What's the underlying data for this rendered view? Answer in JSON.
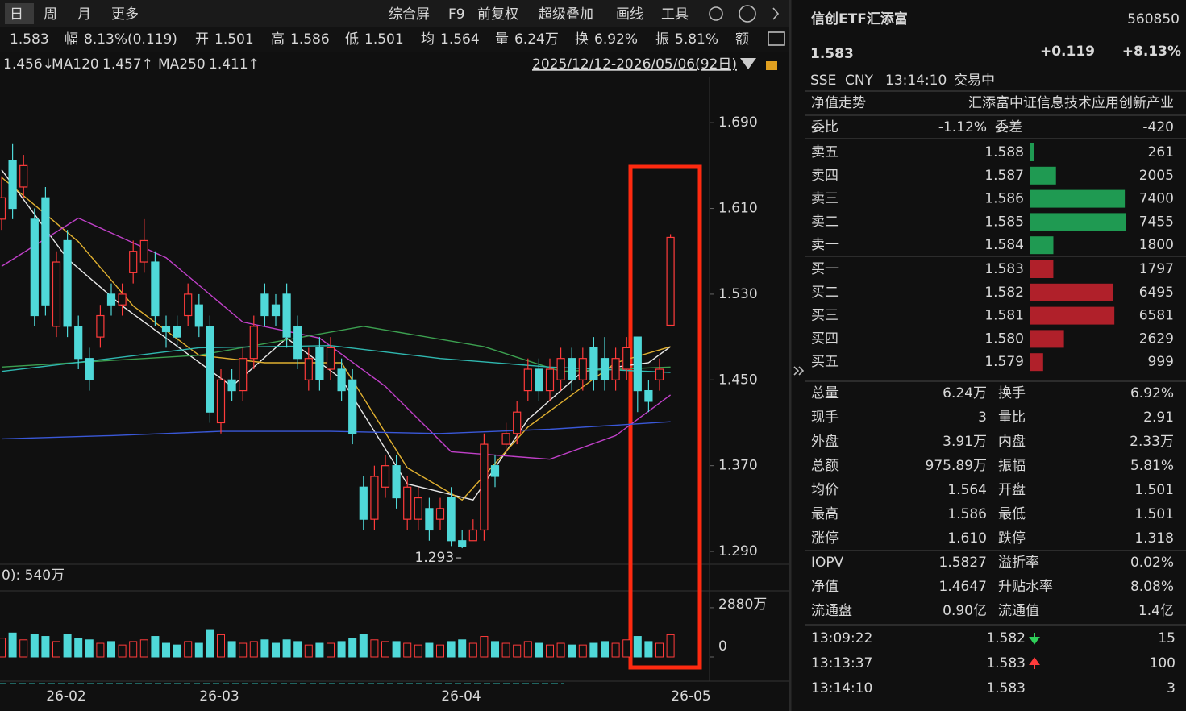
{
  "toolbar": {
    "periods": [
      "日",
      "周",
      "月",
      "更多"
    ],
    "tools": [
      "综合屏",
      "F9",
      "前复权",
      "超级叠加",
      "画线",
      "工具"
    ]
  },
  "info_bar": [
    {
      "value": "1.583"
    },
    {
      "label": "幅",
      "value": "8.13%(0.119)"
    },
    {
      "label": "开",
      "value": "1.501"
    },
    {
      "label": "高",
      "value": "1.586"
    },
    {
      "label": "低",
      "value": "1.501"
    },
    {
      "label": "均",
      "value": "1.564"
    },
    {
      "label": "量",
      "value": "6.24万"
    },
    {
      "label": "换",
      "value": "6.92%"
    },
    {
      "label": "振",
      "value": "5.81%"
    },
    {
      "label": "额"
    }
  ],
  "ma_legend": [
    {
      "value": "1.456↓",
      "color": "#3ccf6a"
    },
    {
      "label": "MA120",
      "value": "1.457↑",
      "color": "#e0e0e0"
    },
    {
      "label": "MA250",
      "value": "1.411↑",
      "color": "#4a7bff"
    }
  ],
  "date_range": "2025/12/12-2026/05/06(92日)",
  "chart": {
    "type": "candlestick",
    "ylim": [
      1.278,
      1.733
    ],
    "yticks": [
      {
        "value": 1.69,
        "label": "1.690"
      },
      {
        "value": 1.61,
        "label": "1.610"
      },
      {
        "value": 1.53,
        "label": "1.530"
      },
      {
        "value": 1.45,
        "label": "1.450"
      },
      {
        "value": 1.37,
        "label": "1.370"
      },
      {
        "value": 1.29,
        "label": "1.290"
      }
    ],
    "grid": false,
    "up_color": "#ff3b3b",
    "down_color": "#4fd8d8",
    "candles": {
      "open": [
        1.6,
        1.655,
        1.63,
        1.6,
        1.62,
        1.5,
        1.58,
        1.5,
        1.47,
        1.49,
        1.53,
        1.52,
        1.55,
        1.56,
        1.56,
        1.5,
        1.5,
        1.51,
        1.52,
        1.5,
        1.41,
        1.45,
        1.44,
        1.47,
        1.53,
        1.52,
        1.53,
        1.5,
        1.45,
        1.48,
        1.46,
        1.46,
        1.45,
        1.35,
        1.32,
        1.35,
        1.37,
        1.32,
        1.32,
        1.33,
        1.32,
        1.34,
        1.3,
        1.3,
        1.31,
        1.37,
        1.39,
        1.4,
        1.44,
        1.46,
        1.44,
        1.45,
        1.47,
        1.45,
        1.48,
        1.47,
        1.45,
        1.46,
        1.49,
        1.44,
        1.45,
        1.501
      ],
      "high": [
        1.64,
        1.67,
        1.66,
        1.61,
        1.63,
        1.57,
        1.59,
        1.51,
        1.48,
        1.52,
        1.54,
        1.54,
        1.58,
        1.6,
        1.57,
        1.51,
        1.51,
        1.54,
        1.53,
        1.51,
        1.46,
        1.46,
        1.48,
        1.51,
        1.54,
        1.53,
        1.54,
        1.51,
        1.48,
        1.49,
        1.49,
        1.47,
        1.46,
        1.36,
        1.37,
        1.38,
        1.38,
        1.36,
        1.35,
        1.34,
        1.34,
        1.35,
        1.31,
        1.32,
        1.4,
        1.38,
        1.41,
        1.43,
        1.47,
        1.47,
        1.47,
        1.48,
        1.48,
        1.48,
        1.49,
        1.49,
        1.48,
        1.49,
        1.49,
        1.45,
        1.47,
        1.586
      ],
      "low": [
        1.59,
        1.6,
        1.62,
        1.5,
        1.51,
        1.49,
        1.49,
        1.46,
        1.44,
        1.48,
        1.51,
        1.51,
        1.54,
        1.55,
        1.5,
        1.48,
        1.48,
        1.5,
        1.49,
        1.41,
        1.4,
        1.43,
        1.43,
        1.46,
        1.5,
        1.5,
        1.48,
        1.46,
        1.44,
        1.44,
        1.45,
        1.43,
        1.39,
        1.31,
        1.31,
        1.34,
        1.33,
        1.31,
        1.31,
        1.3,
        1.31,
        1.295,
        1.293,
        1.3,
        1.3,
        1.35,
        1.38,
        1.39,
        1.43,
        1.43,
        1.43,
        1.44,
        1.44,
        1.44,
        1.44,
        1.44,
        1.44,
        1.45,
        1.42,
        1.42,
        1.44,
        1.501
      ],
      "close": [
        1.62,
        1.61,
        1.65,
        1.51,
        1.52,
        1.56,
        1.5,
        1.47,
        1.45,
        1.51,
        1.52,
        1.53,
        1.57,
        1.58,
        1.51,
        1.495,
        1.49,
        1.53,
        1.5,
        1.42,
        1.45,
        1.44,
        1.47,
        1.5,
        1.51,
        1.51,
        1.49,
        1.47,
        1.47,
        1.45,
        1.48,
        1.44,
        1.4,
        1.32,
        1.36,
        1.37,
        1.34,
        1.35,
        1.34,
        1.31,
        1.33,
        1.3,
        1.295,
        1.31,
        1.39,
        1.36,
        1.4,
        1.42,
        1.46,
        1.44,
        1.46,
        1.47,
        1.45,
        1.47,
        1.45,
        1.45,
        1.47,
        1.48,
        1.44,
        1.43,
        1.46,
        1.583
      ]
    },
    "low_label": "1.293",
    "ma_lines": [
      {
        "color": "#e8e8e8",
        "x": [
          0,
          6,
          11,
          21,
          26,
          31,
          37,
          43,
          48,
          53,
          59,
          61
        ],
        "values": [
          1.646,
          1.563,
          1.519,
          1.444,
          1.489,
          1.451,
          1.353,
          1.338,
          1.413,
          1.458,
          1.466,
          1.481
        ]
      },
      {
        "color": "#e0b030",
        "x": [
          0,
          7,
          12,
          18,
          24,
          31,
          37,
          42,
          48,
          56,
          61
        ],
        "values": [
          1.639,
          1.579,
          1.519,
          1.473,
          1.466,
          1.466,
          1.368,
          1.338,
          1.406,
          1.466,
          1.481
        ]
      },
      {
        "color": "#c040c8",
        "x": [
          0,
          7,
          15,
          22,
          29,
          35,
          41,
          50,
          56,
          61
        ],
        "values": [
          1.556,
          1.601,
          1.564,
          1.504,
          1.489,
          1.444,
          1.383,
          1.376,
          1.398,
          1.436
        ]
      },
      {
        "color": "#3ca050",
        "x": [
          0,
          18,
          33,
          44,
          51,
          61
        ],
        "values": [
          1.462,
          1.473,
          1.5,
          1.481,
          1.458,
          1.462
        ]
      },
      {
        "name": "MA120",
        "color": "#2fb8b0",
        "x": [
          0,
          10,
          18,
          30,
          40,
          50,
          61
        ],
        "values": [
          1.458,
          1.47,
          1.48,
          1.482,
          1.47,
          1.462,
          1.457
        ]
      },
      {
        "name": "MA250",
        "color": "#3a58d8",
        "x": [
          0,
          10,
          20,
          30,
          40,
          50,
          61
        ],
        "values": [
          1.395,
          1.398,
          1.402,
          1.402,
          1.4,
          1.404,
          1.411
        ]
      }
    ],
    "volume": {
      "label": "0): 540万",
      "ylim": [
        0,
        3300
      ],
      "yticks": [
        0,
        {
          "value": 2880,
          "label": "2880万"
        }
      ],
      "values": [
        1100,
        1400,
        1000,
        1300,
        1200,
        900,
        1300,
        1100,
        1000,
        800,
        900,
        700,
        900,
        1000,
        1200,
        800,
        700,
        900,
        800,
        1600,
        1300,
        900,
        800,
        900,
        1000,
        800,
        1000,
        900,
        700,
        800,
        800,
        900,
        1100,
        1300,
        1000,
        900,
        900,
        800,
        700,
        800,
        700,
        900,
        1000,
        800,
        1200,
        900,
        800,
        700,
        900,
        800,
        700,
        800,
        700,
        700,
        800,
        900,
        800,
        1000,
        1200,
        900,
        800,
        1300
      ]
    },
    "x_labels": [
      "26-02",
      "26-03",
      "26-04",
      "26-05"
    ]
  },
  "quote": {
    "name": "信创ETF汇添富",
    "code": "560850",
    "price": "1.583",
    "change": "+0.119",
    "change_pct": "+8.13%",
    "meta": [
      "SSE",
      "CNY",
      "13:14:10",
      "交易中"
    ]
  },
  "nav_row": [
    "净值走势",
    "汇添富中证信息技术应用创新产业"
  ],
  "ratio_row": [
    "委比",
    "-1.12%",
    "委差",
    "-420"
  ],
  "asks": [
    {
      "label": "卖五",
      "price": "1.588",
      "volume": 261
    },
    {
      "label": "卖四",
      "price": "1.587",
      "volume": 2005
    },
    {
      "label": "卖三",
      "price": "1.586",
      "volume": 7400
    },
    {
      "label": "卖二",
      "price": "1.585",
      "volume": 7455
    },
    {
      "label": "卖一",
      "price": "1.584",
      "volume": 1800
    }
  ],
  "bids": [
    {
      "label": "买一",
      "price": "1.583",
      "volume": 1797
    },
    {
      "label": "买二",
      "price": "1.582",
      "volume": 6495
    },
    {
      "label": "买三",
      "price": "1.581",
      "volume": 6581
    },
    {
      "label": "买四",
      "price": "1.580",
      "volume": 2629
    },
    {
      "label": "买五",
      "price": "1.579",
      "volume": 999
    }
  ],
  "stats": [
    [
      {
        "label": "总量",
        "value": "6.24万"
      },
      {
        "label": "换手",
        "value": "6.92%"
      }
    ],
    [
      {
        "label": "现手",
        "value": "3"
      },
      {
        "label": "量比",
        "value": "2.91"
      }
    ],
    [
      {
        "label": "外盘",
        "value": "3.91万",
        "color": "#ff3b3b"
      },
      {
        "label": "内盘",
        "value": "2.33万",
        "color": "#2fd05a"
      }
    ],
    [
      {
        "label": "总额",
        "value": "975.89万"
      },
      {
        "label": "振幅",
        "value": "5.81%"
      }
    ],
    [
      {
        "label": "均价",
        "value": "1.564",
        "color": "#ff3b3b"
      },
      {
        "label": "开盘",
        "value": "1.501",
        "color": "#ff3b3b"
      }
    ],
    [
      {
        "label": "最高",
        "value": "1.586",
        "color": "#ff3b3b"
      },
      {
        "label": "最低",
        "value": "1.501",
        "color": "#ff3b3b"
      }
    ],
    [
      {
        "label": "涨停",
        "value": "1.610",
        "color": "#ff3b3b"
      },
      {
        "label": "跌停",
        "value": "1.318",
        "color": "#2fd05a"
      }
    ],
    [
      {
        "label": "IOPV",
        "value": "1.5827"
      },
      {
        "label": "溢折率",
        "value": "0.02%",
        "color": "#ff3b3b"
      }
    ],
    [
      {
        "label": "净值",
        "value": "1.4647",
        "color": "#ff3b3b"
      },
      {
        "label": "升贴水率",
        "value": "8.08%",
        "color": "#ff3b3b"
      }
    ],
    [
      {
        "label": "流通盘",
        "value": "0.90亿"
      },
      {
        "label": "流通值",
        "value": "1.4亿"
      }
    ]
  ],
  "trades": [
    {
      "time": "13:09:22",
      "price": "1.582",
      "direction": "down",
      "volume": "15",
      "color": "#2fd05a"
    },
    {
      "time": "13:13:37",
      "price": "1.583",
      "direction": "up",
      "volume": "100",
      "color": "#ff3b3b"
    },
    {
      "time": "13:14:10",
      "price": "1.583",
      "volume": "3",
      "color": "#ff3b3b"
    }
  ]
}
